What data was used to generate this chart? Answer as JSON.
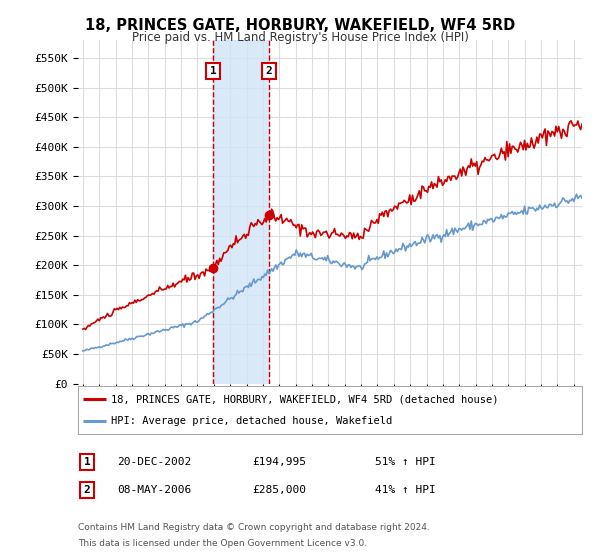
{
  "title": "18, PRINCES GATE, HORBURY, WAKEFIELD, WF4 5RD",
  "subtitle": "Price paid vs. HM Land Registry's House Price Index (HPI)",
  "ylabel_vals": [
    0,
    50000,
    100000,
    150000,
    200000,
    250000,
    300000,
    350000,
    400000,
    450000,
    500000,
    550000
  ],
  "ylim": [
    0,
    580000
  ],
  "xlim_start": 1994.7,
  "xlim_end": 2025.5,
  "legend1": "18, PRINCES GATE, HORBURY, WAKEFIELD, WF4 5RD (detached house)",
  "legend2": "HPI: Average price, detached house, Wakefield",
  "transaction1_date": "20-DEC-2002",
  "transaction1_price": 194995,
  "transaction1_pct": "51% ↑ HPI",
  "transaction1_year": 2002.96,
  "transaction2_date": "08-MAY-2006",
  "transaction2_price": 285000,
  "transaction2_pct": "41% ↑ HPI",
  "transaction2_year": 2006.36,
  "footnote1": "Contains HM Land Registry data © Crown copyright and database right 2024.",
  "footnote2": "This data is licensed under the Open Government Licence v3.0.",
  "red_color": "#cc0000",
  "blue_color": "#6699cc",
  "shade_color": "#d0e4f7",
  "background_color": "#ffffff",
  "grid_color": "#dddddd"
}
